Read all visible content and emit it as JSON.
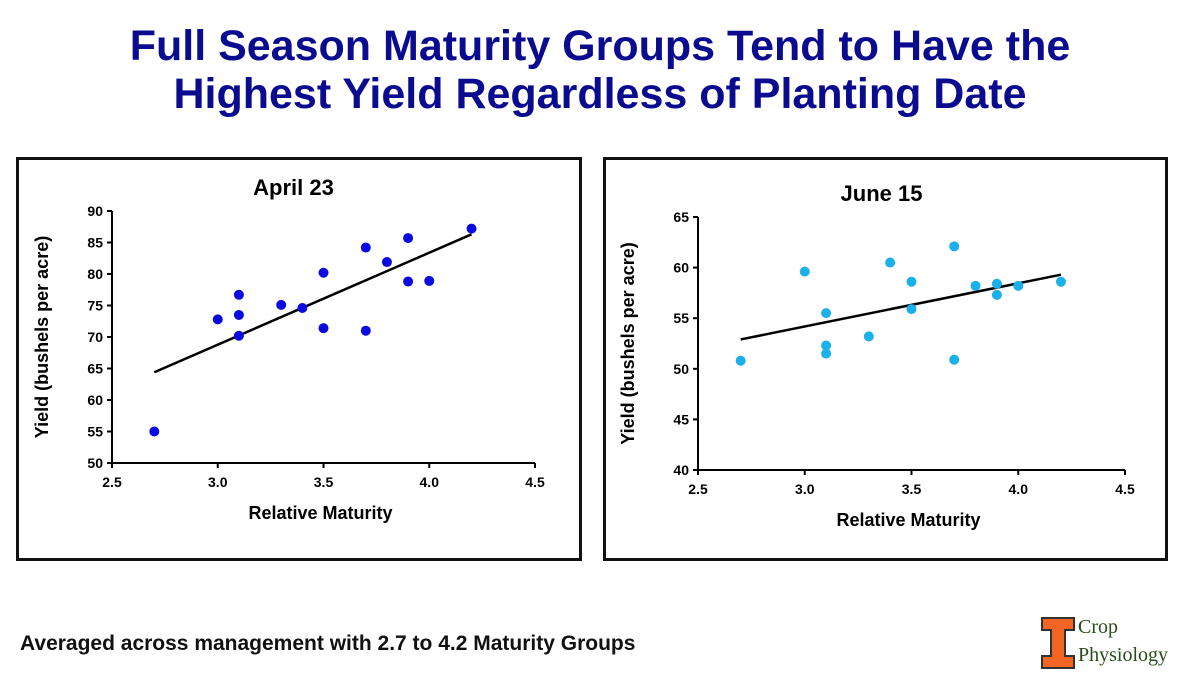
{
  "title_line1": "Full Season Maturity Groups Tend to Have the",
  "title_line2": "Highest Yield Regardless of Planting Date",
  "footer": "Averaged across management with 2.7 to 4.2 Maturity Groups",
  "logo": {
    "line1": "Crop",
    "line2": "Physiology",
    "color": "#f26522"
  },
  "chart_data": [
    {
      "type": "scatter",
      "title": "April 23",
      "xlabel": "Relative Maturity",
      "ylabel": "Yield (bushels per acre)",
      "xlim": [
        2.5,
        4.5
      ],
      "ylim": [
        50,
        90
      ],
      "xticks": [
        "2.5",
        "3.0",
        "3.5",
        "4.0",
        "4.5"
      ],
      "yticks": [
        "50",
        "55",
        "60",
        "65",
        "70",
        "75",
        "80",
        "85",
        "90"
      ],
      "grid": false,
      "color": "#0a0ae0",
      "points": [
        [
          2.7,
          55.0
        ],
        [
          3.0,
          72.8
        ],
        [
          3.1,
          76.7
        ],
        [
          3.1,
          73.5
        ],
        [
          3.1,
          70.2
        ],
        [
          3.3,
          75.1
        ],
        [
          3.4,
          74.6
        ],
        [
          3.5,
          80.2
        ],
        [
          3.5,
          71.4
        ],
        [
          3.7,
          84.2
        ],
        [
          3.7,
          71.0
        ],
        [
          3.8,
          81.9
        ],
        [
          3.9,
          85.7
        ],
        [
          3.9,
          78.8
        ],
        [
          4.0,
          78.9
        ],
        [
          4.2,
          87.2
        ]
      ],
      "trendline": [
        [
          2.7,
          64.4
        ],
        [
          4.2,
          86.3
        ]
      ]
    },
    {
      "type": "scatter",
      "title": "June 15",
      "xlabel": "Relative Maturity",
      "ylabel": "Yield (bushels per acre)",
      "xlim": [
        2.5,
        4.5
      ],
      "ylim": [
        40,
        65
      ],
      "xticks": [
        "2.5",
        "3.0",
        "3.5",
        "4.0",
        "4.5"
      ],
      "yticks": [
        "40",
        "45",
        "50",
        "55",
        "60",
        "65"
      ],
      "grid": false,
      "color": "#1ab0ea",
      "points": [
        [
          2.7,
          50.8
        ],
        [
          3.0,
          59.6
        ],
        [
          3.1,
          55.5
        ],
        [
          3.1,
          52.3
        ],
        [
          3.1,
          51.5
        ],
        [
          3.3,
          53.2
        ],
        [
          3.4,
          60.5
        ],
        [
          3.5,
          58.6
        ],
        [
          3.5,
          55.9
        ],
        [
          3.7,
          62.1
        ],
        [
          3.7,
          50.9
        ],
        [
          3.8,
          58.2
        ],
        [
          3.9,
          58.4
        ],
        [
          3.9,
          57.3
        ],
        [
          4.0,
          58.2
        ],
        [
          4.2,
          58.6
        ]
      ],
      "trendline": [
        [
          2.7,
          52.9
        ],
        [
          4.2,
          59.3
        ]
      ]
    }
  ]
}
